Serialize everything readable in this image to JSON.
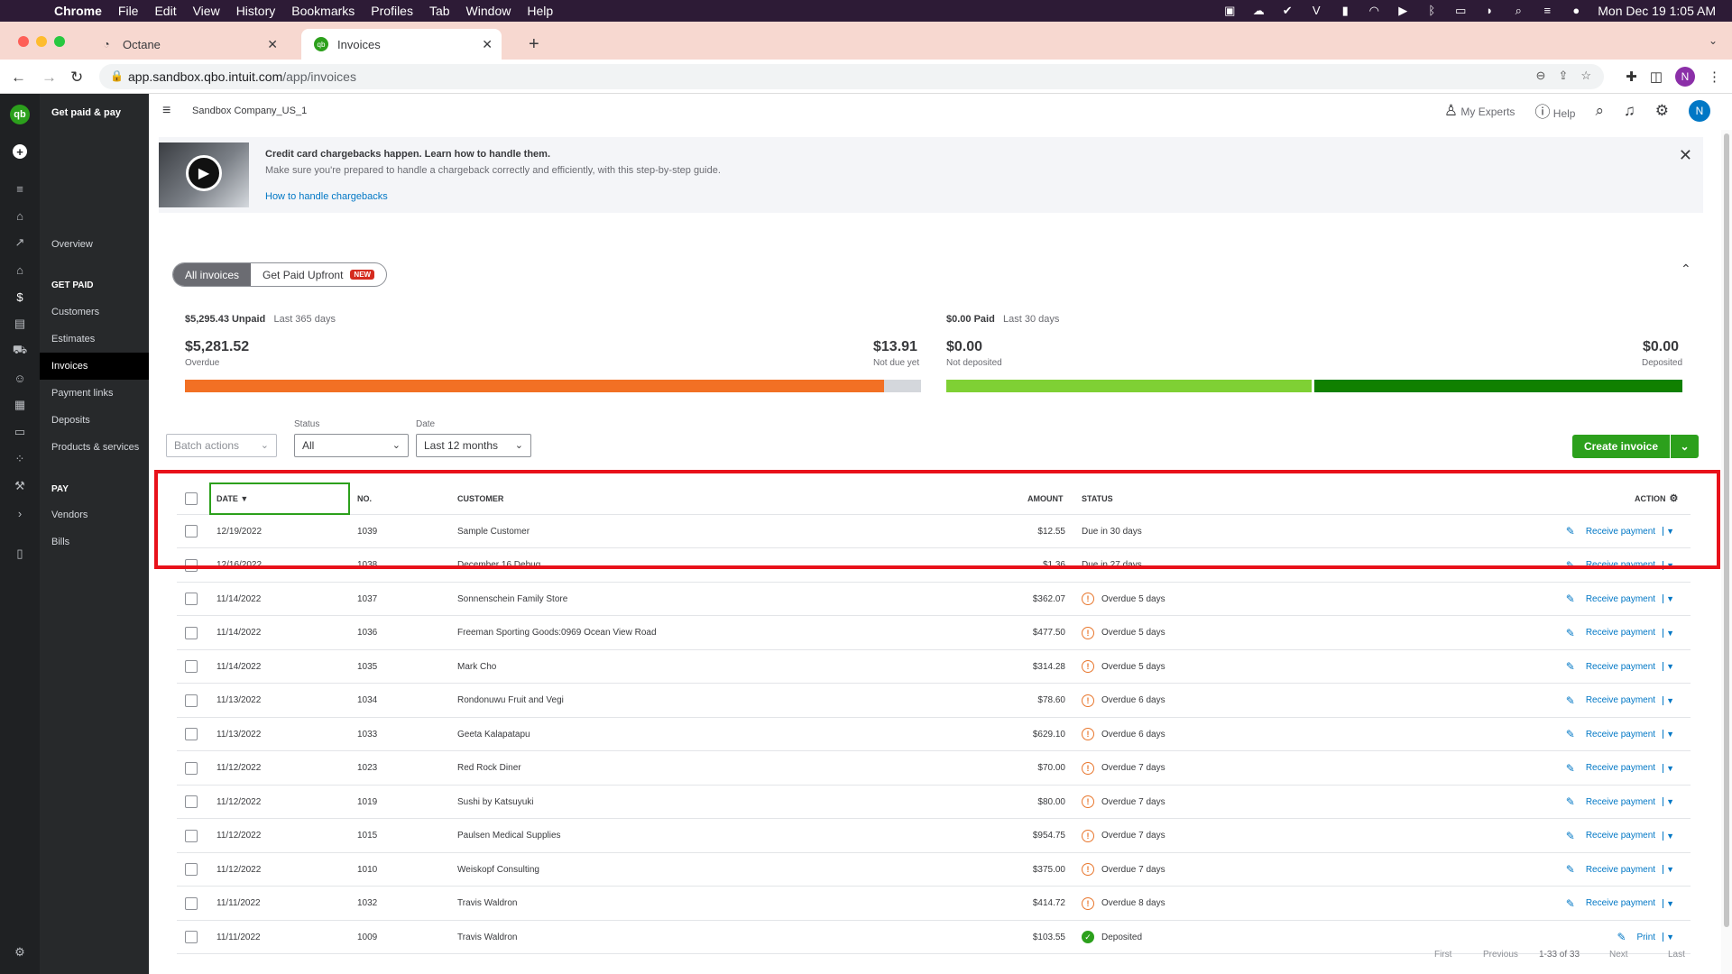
{
  "menubar": {
    "app": "Chrome",
    "items": [
      "File",
      "Edit",
      "View",
      "History",
      "Bookmarks",
      "Profiles",
      "Tab",
      "Window",
      "Help"
    ],
    "clock": "Mon Dec 19  1:05 AM"
  },
  "tabs": [
    {
      "title": "Octane"
    },
    {
      "title": "Invoices"
    }
  ],
  "address": {
    "host": "app.sandbox.qbo.intuit.com",
    "path": "/app/invoices"
  },
  "profile_initial": "N",
  "sidebar": {
    "title": "Get paid & pay",
    "overview": "Overview",
    "section_paid": "GET PAID",
    "paid_items": [
      "Customers",
      "Estimates",
      "Invoices",
      "Payment links",
      "Deposits",
      "Products & services"
    ],
    "section_pay": "PAY",
    "pay_items": [
      "Vendors",
      "Bills"
    ]
  },
  "header": {
    "company": "Sandbox Company_US_1",
    "experts": "My Experts",
    "help": "Help",
    "avatar": "N"
  },
  "banner": {
    "title": "Credit card chargebacks happen. Learn how to handle them.",
    "subtitle": "Make sure you're prepared to handle a chargeback correctly and efficiently, with this step-by-step guide.",
    "link": "How to handle chargebacks"
  },
  "segments": {
    "all": "All invoices",
    "upfront": "Get Paid Upfront",
    "badge": "NEW"
  },
  "summary": {
    "unpaid": {
      "amount": "$5,295.43 Unpaid",
      "period": "Last 365 days",
      "overdue_amount": "$5,281.52",
      "overdue_label": "Overdue",
      "notdue_amount": "$13.91",
      "notdue_label": "Not due yet",
      "overdue_fraction": 0.95
    },
    "paid": {
      "amount": "$0.00 Paid",
      "period": "Last 30 days",
      "notdep_amount": "$0.00",
      "notdep_label": "Not deposited",
      "dep_amount": "$0.00",
      "dep_label": "Deposited",
      "notdep_fraction": 0.5
    }
  },
  "filters": {
    "batch": "Batch actions",
    "status_label": "Status",
    "status_value": "All",
    "date_label": "Date",
    "date_value": "Last 12 months",
    "create": "Create invoice"
  },
  "table": {
    "headers": {
      "date": "DATE ▼",
      "no": "NO.",
      "customer": "CUSTOMER",
      "amount": "AMOUNT",
      "status": "STATUS",
      "action": "ACTION"
    },
    "rows": [
      {
        "date": "12/19/2022",
        "no": "1039",
        "customer": "Sample Customer",
        "amount": "$12.55",
        "status": "Due in 30 days",
        "kind": "due",
        "action": "Receive payment"
      },
      {
        "date": "12/16/2022",
        "no": "1038",
        "customer": "December 16 Debug",
        "amount": "$1.36",
        "status": "Due in 27 days",
        "kind": "due",
        "action": "Receive payment"
      },
      {
        "date": "11/14/2022",
        "no": "1037",
        "customer": "Sonnenschein Family Store",
        "amount": "$362.07",
        "status": "Overdue 5 days",
        "kind": "overdue",
        "action": "Receive payment"
      },
      {
        "date": "11/14/2022",
        "no": "1036",
        "customer": "Freeman Sporting Goods:0969 Ocean View Road",
        "amount": "$477.50",
        "status": "Overdue 5 days",
        "kind": "overdue",
        "action": "Receive payment"
      },
      {
        "date": "11/14/2022",
        "no": "1035",
        "customer": "Mark Cho",
        "amount": "$314.28",
        "status": "Overdue 5 days",
        "kind": "overdue",
        "action": "Receive payment"
      },
      {
        "date": "11/13/2022",
        "no": "1034",
        "customer": "Rondonuwu Fruit and Vegi",
        "amount": "$78.60",
        "status": "Overdue 6 days",
        "kind": "overdue",
        "action": "Receive payment"
      },
      {
        "date": "11/13/2022",
        "no": "1033",
        "customer": "Geeta Kalapatapu",
        "amount": "$629.10",
        "status": "Overdue 6 days",
        "kind": "overdue",
        "action": "Receive payment"
      },
      {
        "date": "11/12/2022",
        "no": "1023",
        "customer": "Red Rock Diner",
        "amount": "$70.00",
        "status": "Overdue 7 days",
        "kind": "overdue",
        "action": "Receive payment"
      },
      {
        "date": "11/12/2022",
        "no": "1019",
        "customer": "Sushi by Katsuyuki",
        "amount": "$80.00",
        "status": "Overdue 7 days",
        "kind": "overdue",
        "action": "Receive payment"
      },
      {
        "date": "11/12/2022",
        "no": "1015",
        "customer": "Paulsen Medical Supplies",
        "amount": "$954.75",
        "status": "Overdue 7 days",
        "kind": "overdue",
        "action": "Receive payment"
      },
      {
        "date": "11/12/2022",
        "no": "1010",
        "customer": "Weiskopf Consulting",
        "amount": "$375.00",
        "status": "Overdue 7 days",
        "kind": "overdue",
        "action": "Receive payment"
      },
      {
        "date": "11/11/2022",
        "no": "1032",
        "customer": "Travis Waldron",
        "amount": "$414.72",
        "status": "Overdue 8 days",
        "kind": "overdue",
        "action": "Receive payment"
      },
      {
        "date": "11/11/2022",
        "no": "1009",
        "customer": "Travis Waldron",
        "amount": "$103.55",
        "status": "Deposited",
        "kind": "deposited",
        "action": "Print"
      }
    ]
  },
  "pager": {
    "first": "First",
    "previous": "Previous",
    "range": "1-33 of 33",
    "next": "Next",
    "last": "Last"
  }
}
